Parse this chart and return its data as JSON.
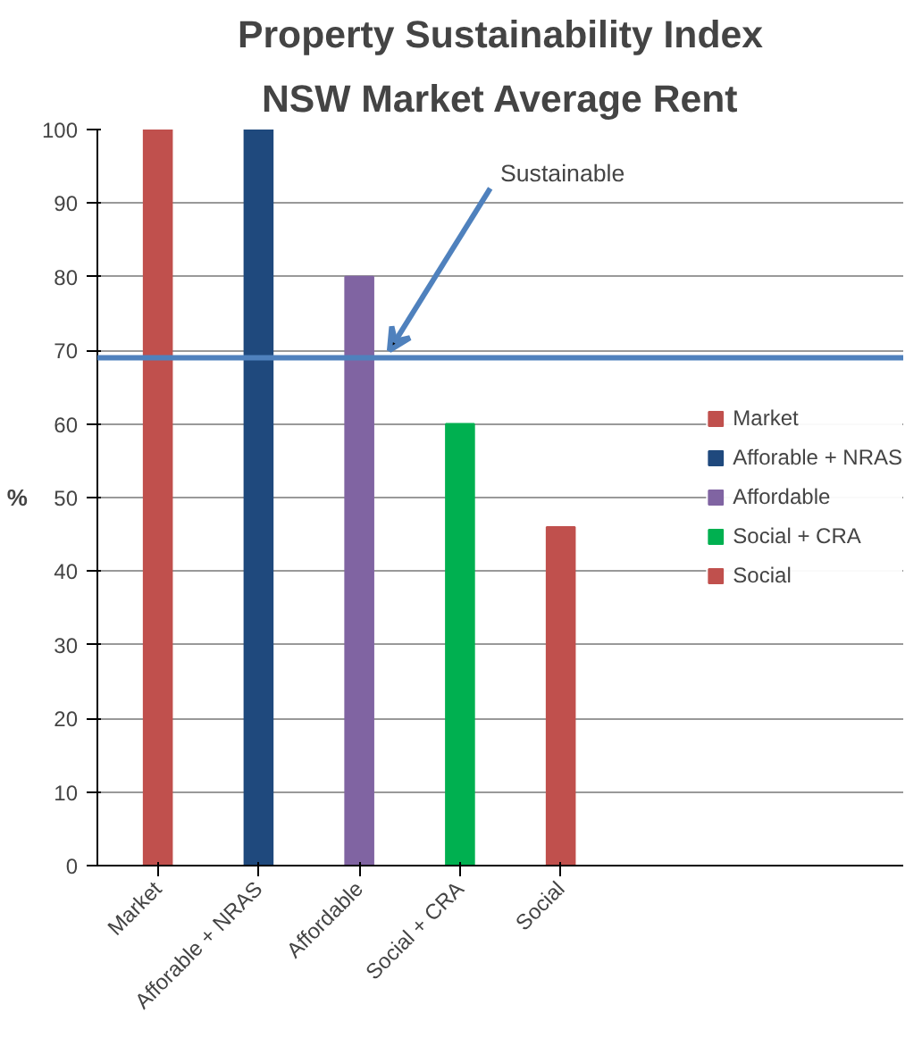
{
  "chart_data": {
    "type": "bar",
    "title": "Property Sustainability Index",
    "subtitle": "NSW Market Average Rent",
    "ylabel": "%",
    "categories": [
      "Market",
      "Afforable + NRAS",
      "Affordable",
      "Social + CRA",
      "Social"
    ],
    "series": [
      {
        "name": "Market",
        "color": "#c0504d",
        "values": [
          100,
          null,
          null,
          null,
          null
        ]
      },
      {
        "name": "Afforable + NRAS",
        "color": "#1f497d",
        "values": [
          null,
          100,
          null,
          null,
          null
        ]
      },
      {
        "name": "Affordable",
        "color": "#8064a2",
        "values": [
          null,
          null,
          80,
          null,
          null
        ]
      },
      {
        "name": "Social + CRA",
        "color": "#00b050",
        "values": [
          null,
          null,
          null,
          60,
          null
        ]
      },
      {
        "name": "Social",
        "color": "#c0504d",
        "values": [
          null,
          null,
          null,
          null,
          46
        ]
      }
    ],
    "ylim": [
      0,
      100
    ],
    "yticks": [
      0,
      10,
      20,
      30,
      40,
      50,
      60,
      70,
      80,
      90,
      100
    ],
    "grid": "y",
    "legend": "right",
    "ref_lines": [
      {
        "axis": "y",
        "value": 69,
        "label": "Sustainable",
        "color": "#4f81bd"
      }
    ]
  }
}
